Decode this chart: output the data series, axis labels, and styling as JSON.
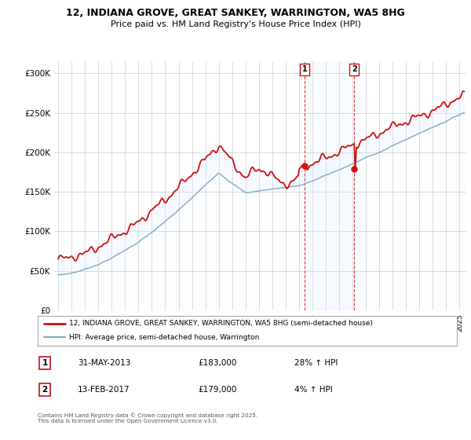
{
  "title_line1": "12, INDIANA GROVE, GREAT SANKEY, WARRINGTON, WA5 8HG",
  "title_line2": "Price paid vs. HM Land Registry's House Price Index (HPI)",
  "ylabel_ticks": [
    "£0",
    "£50K",
    "£100K",
    "£150K",
    "£200K",
    "£250K",
    "£300K"
  ],
  "ytick_values": [
    0,
    50000,
    100000,
    150000,
    200000,
    250000,
    300000
  ],
  "ylim": [
    0,
    315000
  ],
  "xlim_start": 1994.7,
  "xlim_end": 2025.5,
  "hpi_color": "#7eaacc",
  "price_color": "#cc1111",
  "hpi_fill_color": "#ddeeff",
  "marker1_x": 2013.42,
  "marker1_y": 183000,
  "marker2_x": 2017.12,
  "marker2_y": 179000,
  "legend_label1": "12, INDIANA GROVE, GREAT SANKEY, WARRINGTON, WA5 8HG (semi-detached house)",
  "legend_label2": "HPI: Average price, semi-detached house, Warrington",
  "annotation1_label": "1",
  "annotation1_date": "31-MAY-2013",
  "annotation1_price": "£183,000",
  "annotation1_hpi": "28% ↑ HPI",
  "annotation2_label": "2",
  "annotation2_date": "13-FEB-2017",
  "annotation2_price": "£179,000",
  "annotation2_hpi": "4% ↑ HPI",
  "footer": "Contains HM Land Registry data © Crown copyright and database right 2025.\nThis data is licensed under the Open Government Licence v3.0.",
  "background_color": "#ffffff",
  "grid_color": "#cccccc"
}
